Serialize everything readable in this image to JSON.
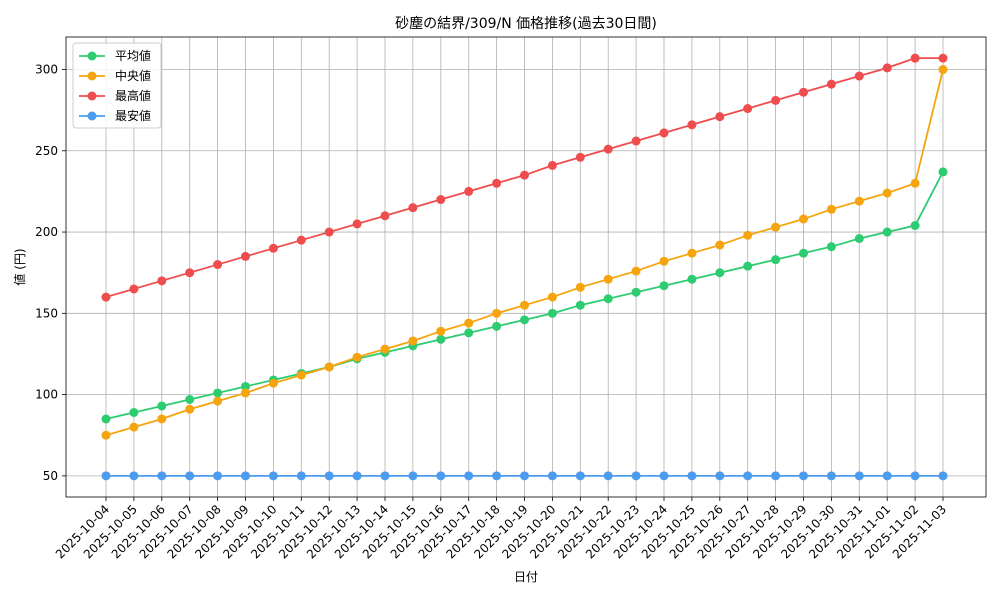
{
  "chart_data": {
    "type": "line",
    "title": "砂塵の結界/309/N 価格推移(過去30日間)",
    "xlabel": "日付",
    "ylabel": "値 (円)",
    "ylim": [
      37,
      320
    ],
    "yticks": [
      50,
      100,
      150,
      200,
      250,
      300
    ],
    "grid": true,
    "legend_position": "top-left",
    "categories": [
      "2025-10-04",
      "2025-10-05",
      "2025-10-06",
      "2025-10-07",
      "2025-10-08",
      "2025-10-09",
      "2025-10-10",
      "2025-10-11",
      "2025-10-12",
      "2025-10-13",
      "2025-10-14",
      "2025-10-15",
      "2025-10-16",
      "2025-10-17",
      "2025-10-18",
      "2025-10-19",
      "2025-10-20",
      "2025-10-21",
      "2025-10-22",
      "2025-10-23",
      "2025-10-24",
      "2025-10-25",
      "2025-10-26",
      "2025-10-27",
      "2025-10-28",
      "2025-10-29",
      "2025-10-30",
      "2025-10-31",
      "2025-11-01",
      "2025-11-02",
      "2025-11-03"
    ],
    "series": [
      {
        "name": "平均値",
        "color": "#2ecc71",
        "values": [
          85,
          89,
          93,
          97,
          101,
          105,
          109,
          113,
          117,
          122,
          126,
          130,
          134,
          138,
          142,
          146,
          150,
          155,
          159,
          163,
          167,
          171,
          175,
          179,
          183,
          187,
          191,
          196,
          200,
          204,
          237
        ]
      },
      {
        "name": "中央値",
        "color": "#f5a40d",
        "values": [
          75,
          80,
          85,
          91,
          96,
          101,
          107,
          112,
          117,
          123,
          128,
          133,
          139,
          144,
          150,
          155,
          160,
          166,
          171,
          176,
          182,
          187,
          192,
          198,
          203,
          208,
          214,
          219,
          224,
          230,
          300
        ]
      },
      {
        "name": "最高値",
        "color": "#ef4d4d",
        "values": [
          160,
          165,
          170,
          175,
          180,
          185,
          190,
          195,
          200,
          205,
          210,
          215,
          220,
          225,
          230,
          235,
          241,
          246,
          251,
          256,
          261,
          266,
          271,
          276,
          281,
          286,
          291,
          296,
          301,
          307,
          307
        ]
      },
      {
        "name": "最安値",
        "color": "#4c9bef",
        "values": [
          50,
          50,
          50,
          50,
          50,
          50,
          50,
          50,
          50,
          50,
          50,
          50,
          50,
          50,
          50,
          50,
          50,
          50,
          50,
          50,
          50,
          50,
          50,
          50,
          50,
          50,
          50,
          50,
          50,
          50,
          50
        ]
      }
    ]
  }
}
